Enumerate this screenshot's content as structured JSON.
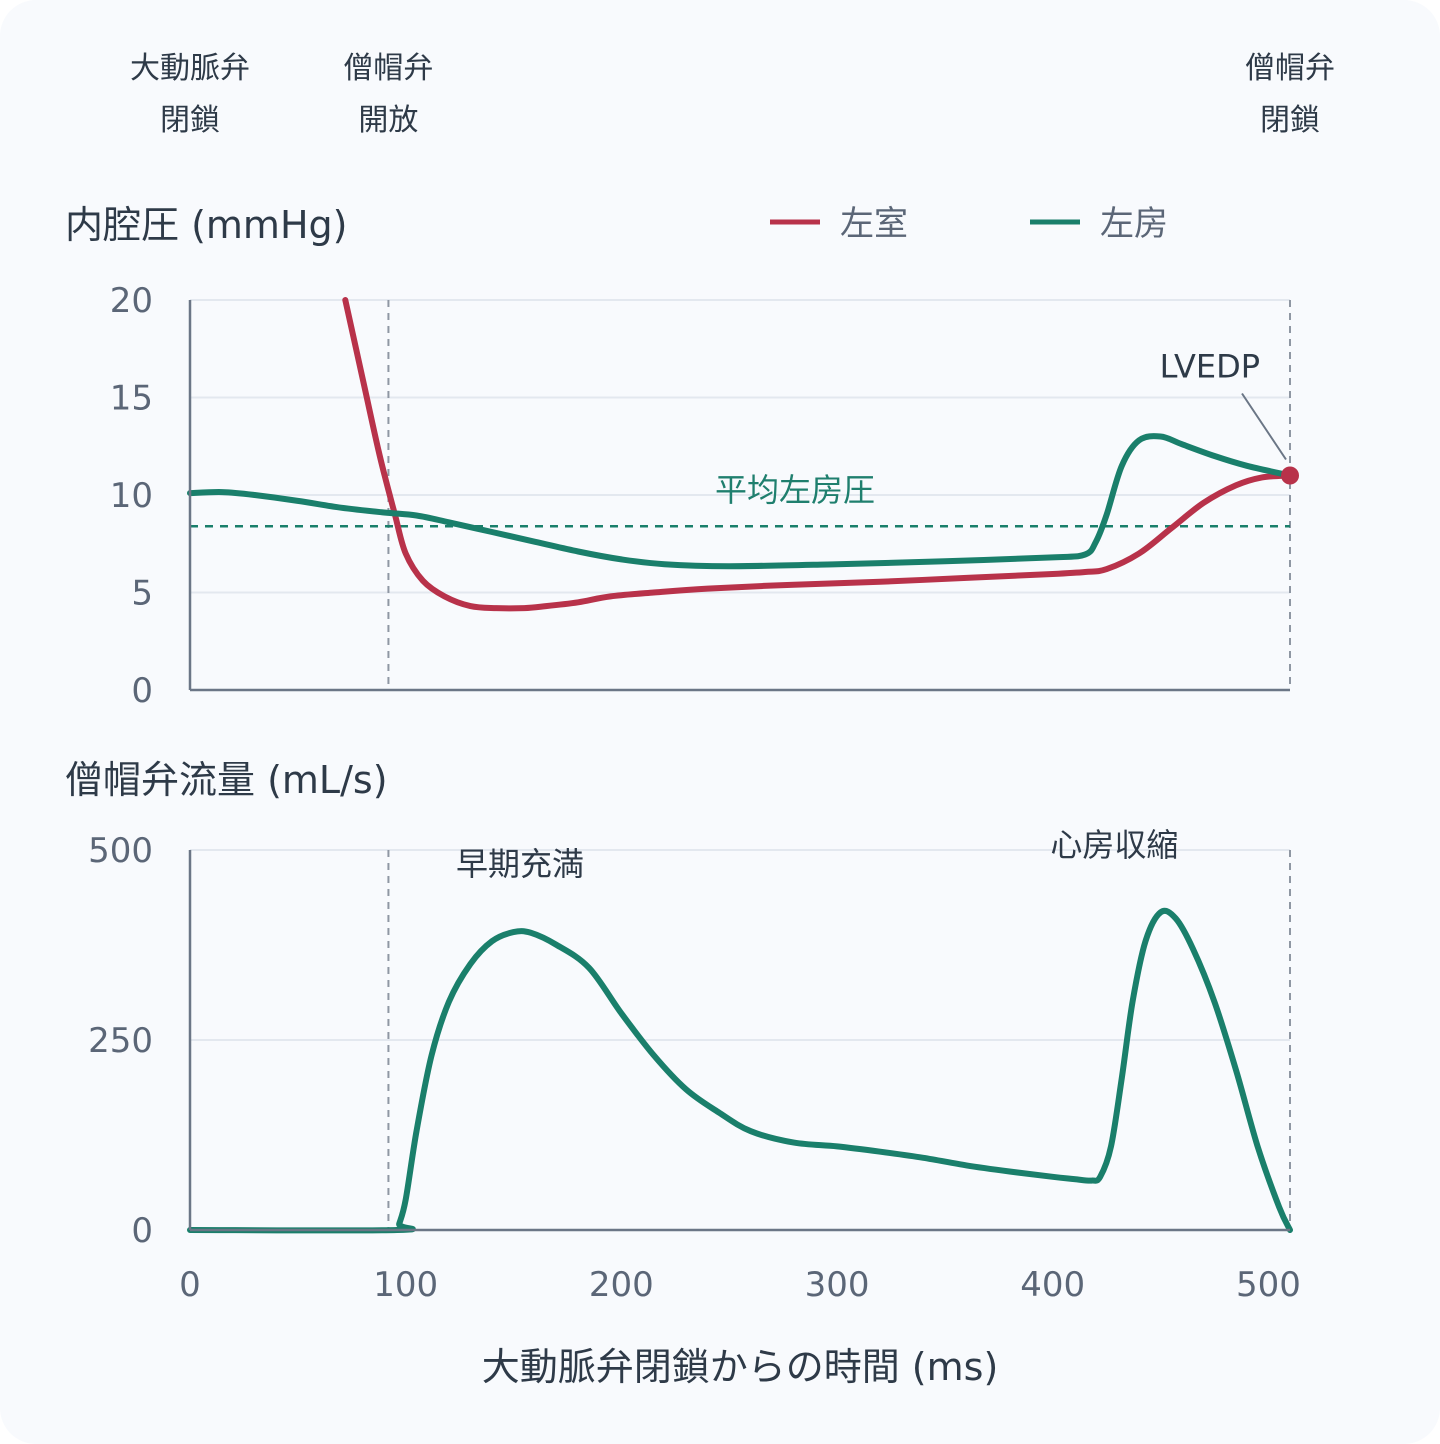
{
  "events": [
    {
      "id": "av-close",
      "t": 0,
      "line1": "大動脈弁",
      "line2": "閉鎖"
    },
    {
      "id": "mv-open",
      "t": 92,
      "line1": "僧帽弁",
      "line2": "開放"
    },
    {
      "id": "mv-close",
      "t": 510,
      "line1": "僧帽弁",
      "line2": "閉鎖"
    }
  ],
  "colors": {
    "lv": "#b8324a",
    "la": "#1a7f6b",
    "axis": "#6b7686",
    "grid": "#e3e8ef",
    "vline": "#8f97a3"
  },
  "chart_data": [
    {
      "type": "line",
      "ylabel": "内腔圧 (mmHg)",
      "xlim": [
        0,
        510
      ],
      "ylim": [
        0,
        20
      ],
      "yticks": [
        "0",
        "5",
        "10",
        "15",
        "20"
      ],
      "grid": true,
      "legend": "top-right",
      "series": [
        {
          "name": "左室",
          "color": "#b8324a",
          "points": [
            [
              72,
              20
            ],
            [
              80,
              16
            ],
            [
              88,
              12
            ],
            [
              95,
              9
            ],
            [
              100,
              7
            ],
            [
              108,
              5.6
            ],
            [
              118,
              4.8
            ],
            [
              130,
              4.3
            ],
            [
              142,
              4.2
            ],
            [
              155,
              4.2
            ],
            [
              165,
              4.3
            ],
            [
              180,
              4.5
            ],
            [
              195,
              4.8
            ],
            [
              215,
              5.0
            ],
            [
              240,
              5.2
            ],
            [
              280,
              5.4
            ],
            [
              320,
              5.55
            ],
            [
              360,
              5.75
            ],
            [
              400,
              5.95
            ],
            [
              415,
              6.05
            ],
            [
              425,
              6.2
            ],
            [
              440,
              7.0
            ],
            [
              455,
              8.3
            ],
            [
              470,
              9.6
            ],
            [
              485,
              10.5
            ],
            [
              497,
              10.9
            ],
            [
              510,
              11.0
            ]
          ]
        },
        {
          "name": "左房",
          "color": "#1a7f6b",
          "points": [
            [
              0,
              10.1
            ],
            [
              15,
              10.15
            ],
            [
              30,
              10.0
            ],
            [
              50,
              9.7
            ],
            [
              70,
              9.35
            ],
            [
              90,
              9.1
            ],
            [
              105,
              8.95
            ],
            [
              120,
              8.6
            ],
            [
              140,
              8.1
            ],
            [
              160,
              7.6
            ],
            [
              180,
              7.1
            ],
            [
              200,
              6.7
            ],
            [
              220,
              6.45
            ],
            [
              250,
              6.35
            ],
            [
              300,
              6.45
            ],
            [
              350,
              6.6
            ],
            [
              400,
              6.8
            ],
            [
              415,
              6.95
            ],
            [
              420,
              7.6
            ],
            [
              425,
              9.0
            ],
            [
              432,
              11.5
            ],
            [
              440,
              12.8
            ],
            [
              450,
              13.0
            ],
            [
              460,
              12.6
            ],
            [
              475,
              12.0
            ],
            [
              490,
              11.5
            ],
            [
              510,
              11.0
            ]
          ]
        }
      ],
      "reference": {
        "label": "平均左房圧",
        "value": 8.4
      },
      "annotations": [
        {
          "label": "LVEDP",
          "x": 510,
          "y": 11.0
        }
      ]
    },
    {
      "type": "line",
      "ylabel": "僧帽弁流量 (mL/s)",
      "xlabel": "大動脈弁閉鎖からの時間 (ms)",
      "xlim": [
        0,
        510
      ],
      "ylim": [
        0,
        500
      ],
      "xticks": [
        "0",
        "100",
        "200",
        "300",
        "400",
        "500"
      ],
      "yticks": [
        "0",
        "250",
        "500"
      ],
      "grid": true,
      "series": [
        {
          "name": "",
          "color": "#1a7f6b",
          "points": [
            [
              0,
              0
            ],
            [
              96,
              0
            ],
            [
              97,
              8
            ],
            [
              100,
              40
            ],
            [
              105,
              130
            ],
            [
              112,
              230
            ],
            [
              120,
              300
            ],
            [
              130,
              350
            ],
            [
              140,
              380
            ],
            [
              150,
              392
            ],
            [
              158,
              391
            ],
            [
              170,
              375
            ],
            [
              185,
              345
            ],
            [
              200,
              285
            ],
            [
              215,
              230
            ],
            [
              230,
              185
            ],
            [
              245,
              155
            ],
            [
              260,
              130
            ],
            [
              280,
              115
            ],
            [
              300,
              110
            ],
            [
              320,
              103
            ],
            [
              340,
              95
            ],
            [
              360,
              85
            ],
            [
              380,
              77
            ],
            [
              400,
              70
            ],
            [
              410,
              67
            ],
            [
              418,
              65
            ],
            [
              422,
              70
            ],
            [
              427,
              110
            ],
            [
              432,
              200
            ],
            [
              437,
              300
            ],
            [
              443,
              380
            ],
            [
              450,
              418
            ],
            [
              457,
              410
            ],
            [
              465,
              370
            ],
            [
              475,
              300
            ],
            [
              485,
              210
            ],
            [
              495,
              110
            ],
            [
              505,
              30
            ],
            [
              510,
              0
            ]
          ]
        }
      ],
      "annotations": [
        {
          "label": "早期充満",
          "x": 153,
          "y": 470
        },
        {
          "label": "心房収縮",
          "x": 423,
          "y": 495
        }
      ]
    }
  ]
}
